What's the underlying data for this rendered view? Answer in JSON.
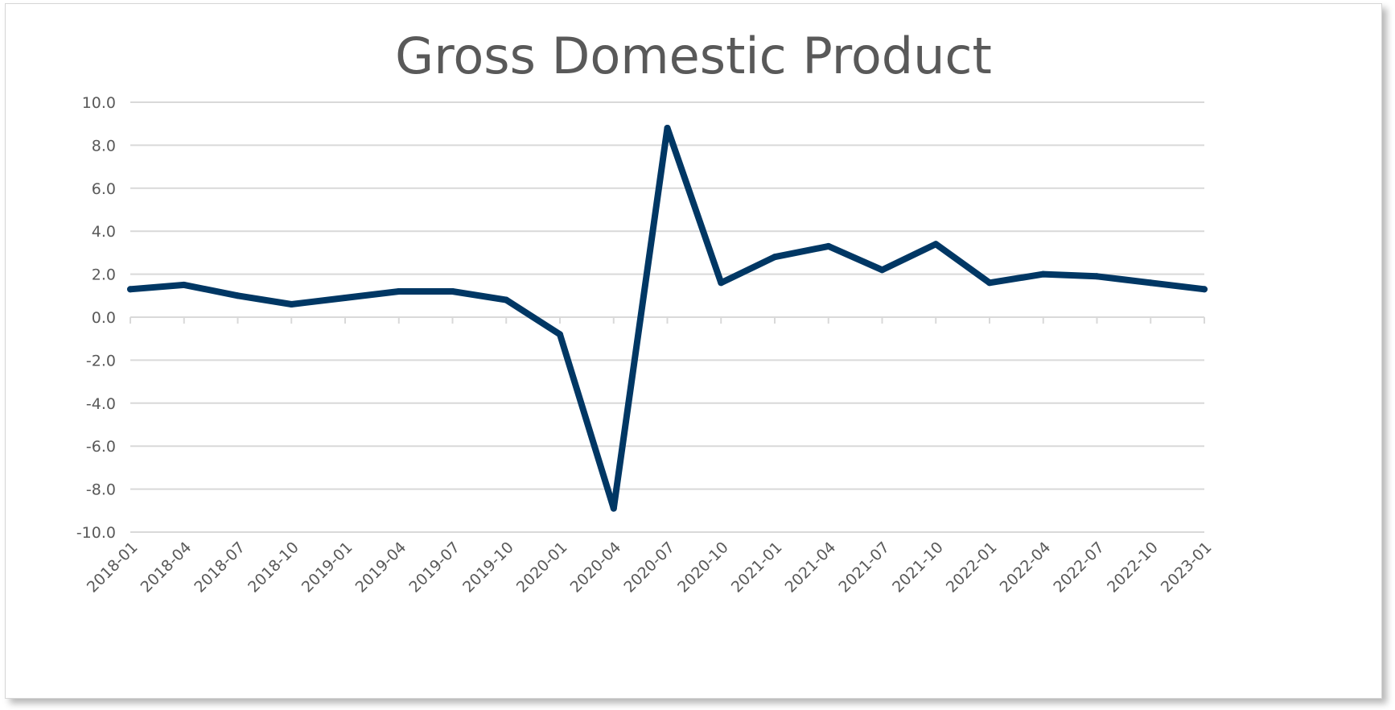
{
  "chart_data": {
    "type": "line",
    "title": "Gross Domestic Product",
    "xlabel": "",
    "ylabel": "",
    "ylim": [
      -10,
      10
    ],
    "y_ticks": [
      "10.0",
      "8.0",
      "6.0",
      "4.0",
      "2.0",
      "0.0",
      "-2.0",
      "-4.0",
      "-6.0",
      "-8.0",
      "-10.0"
    ],
    "y_tick_values": [
      10,
      8,
      6,
      4,
      2,
      0,
      -2,
      -4,
      -6,
      -8,
      -10
    ],
    "categories": [
      "2018-01",
      "2018-04",
      "2018-07",
      "2018-10",
      "2019-01",
      "2019-04",
      "2019-07",
      "2019-10",
      "2020-01",
      "2020-04",
      "2020-07",
      "2020-10",
      "2021-01",
      "2021-04",
      "2021-07",
      "2021-10",
      "2022-01",
      "2022-04",
      "2022-07",
      "2022-10",
      "2023-01"
    ],
    "series": [
      {
        "values": [
          1.3,
          1.5,
          1.0,
          0.6,
          0.9,
          1.2,
          1.2,
          0.8,
          -0.8,
          -8.9,
          8.8,
          1.6,
          2.8,
          3.3,
          2.2,
          3.4,
          1.6,
          2.0,
          1.9,
          1.6,
          1.3
        ],
        "color": "#003764"
      }
    ],
    "grid": true,
    "legend": "none",
    "colors": {
      "line": "#003764",
      "grid": "#d9d9d9",
      "text": "#595959"
    }
  }
}
